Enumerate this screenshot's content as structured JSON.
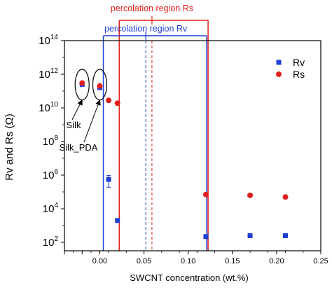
{
  "chart_data": {
    "type": "scatter",
    "xlabel": "SWCNT concentration (wt.%)",
    "ylabel": "Rv and Rs (Ω)",
    "xlim": [
      -0.04,
      0.25
    ],
    "ylim_log10": [
      1.5,
      14
    ],
    "y_scale": "log",
    "x_ticks": [
      {
        "value": -0.04,
        "label": ""
      },
      {
        "value": -0.02,
        "label": ""
      },
      {
        "value": 0.0,
        "label": "0.00"
      },
      {
        "value": 0.05,
        "label": "0.05"
      },
      {
        "value": 0.1,
        "label": "0.10"
      },
      {
        "value": 0.15,
        "label": "0.15"
      },
      {
        "value": 0.2,
        "label": "0.20"
      },
      {
        "value": 0.25,
        "label": "0.25"
      }
    ],
    "y_ticks": [
      {
        "exp": 2,
        "base": "10",
        "sup": "2"
      },
      {
        "exp": 4,
        "base": "10",
        "sup": "4"
      },
      {
        "exp": 6,
        "base": "10",
        "sup": "6"
      },
      {
        "exp": 8,
        "base": "10",
        "sup": "8"
      },
      {
        "exp": 10,
        "base": "10",
        "sup": "10"
      },
      {
        "exp": 12,
        "base": "10",
        "sup": "12"
      },
      {
        "exp": 14,
        "base": "10",
        "sup": "14"
      }
    ],
    "legend_position": "top-right",
    "series": [
      {
        "name": "Rv",
        "marker": "square",
        "color": "#1f3fd6",
        "points": [
          {
            "x": -0.02,
            "y": 250000000000.0
          },
          {
            "x": 0.0,
            "y": 160000000000.0
          },
          {
            "x": 0.01,
            "y": 560000.0,
            "err_up": 400000.0,
            "err_down": 370000.0
          },
          {
            "x": 0.02,
            "y": 2000.0
          },
          {
            "x": 0.12,
            "y": 220.0
          },
          {
            "x": 0.17,
            "y": 250.0
          },
          {
            "x": 0.21,
            "y": 250.0
          }
        ]
      },
      {
        "name": "Rs",
        "marker": "circle",
        "color": "#e0201c",
        "points": [
          {
            "x": -0.02,
            "y": 300000000000.0
          },
          {
            "x": 0.0,
            "y": 200000000000.0
          },
          {
            "x": 0.01,
            "y": 28000000000.0
          },
          {
            "x": 0.02,
            "y": 19000000000.0
          },
          {
            "x": 0.12,
            "y": 70000.0
          },
          {
            "x": 0.17,
            "y": 63000.0
          },
          {
            "x": 0.21,
            "y": 50000.0
          }
        ]
      }
    ],
    "vertical_lines": [
      {
        "x": 0.004,
        "color": "#1f3fd6",
        "style": "solid"
      },
      {
        "x": 0.121,
        "color": "#1f3fd6",
        "style": "solid"
      },
      {
        "x": 0.022,
        "color": "#e0201c",
        "style": "solid"
      },
      {
        "x": 0.1225,
        "color": "#e0201c",
        "style": "solid"
      },
      {
        "x": 0.052,
        "color": "#1f3fd6",
        "style": "dashed"
      },
      {
        "x": 0.059,
        "color": "#e0201c",
        "style": "dashed"
      }
    ],
    "region_brackets": [
      {
        "label": "percolation region Rs",
        "color": "#e0201c",
        "x_start": 0.022,
        "x_end": 0.1225,
        "center_x": 0.059
      },
      {
        "label": "percolation region Rv",
        "color": "#1f3fd6",
        "x_start": 0.004,
        "x_end": 0.121,
        "center_x": 0.052
      }
    ],
    "annotations": [
      {
        "text": "Silk",
        "target_x": -0.02
      },
      {
        "text": "Silk_PDA",
        "target_x": 0.0
      }
    ]
  }
}
